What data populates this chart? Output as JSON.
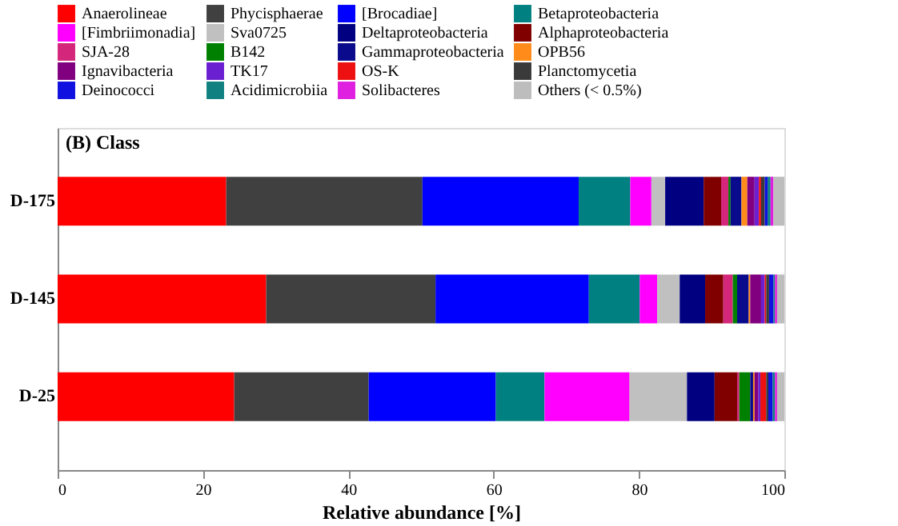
{
  "chart_data": {
    "type": "bar",
    "orientation": "horizontal",
    "stacked": true,
    "title": "(B) Class",
    "xlabel": "Relative abundance [%]",
    "categories": [
      "D-175",
      "D-145",
      "D-25"
    ],
    "xlim": [
      0,
      100
    ],
    "xticks": [
      0,
      20,
      40,
      60,
      80,
      100
    ],
    "grid": false,
    "legend": "top",
    "series": [
      {
        "name": "Anaerolineae",
        "color": "#ff0000",
        "values": [
          23.2,
          28.7,
          24.3
        ]
      },
      {
        "name": "Phycisphaerae",
        "color": "#404040",
        "values": [
          27.0,
          23.3,
          18.5
        ]
      },
      {
        "name": "[Brocadiae]",
        "color": "#0000ff",
        "values": [
          21.5,
          21.1,
          17.5
        ]
      },
      {
        "name": "Betaproteobacteria",
        "color": "#008080",
        "values": [
          7.1,
          7.0,
          6.7
        ]
      },
      {
        "name": "[Fimbriimonadia]",
        "color": "#ff00ff",
        "values": [
          2.9,
          2.4,
          11.7
        ]
      },
      {
        "name": "Sva0725",
        "color": "#c0c0c0",
        "values": [
          1.9,
          3.1,
          7.9
        ]
      },
      {
        "name": "Deltaproteobacteria",
        "color": "#000080",
        "values": [
          5.3,
          3.5,
          3.8
        ]
      },
      {
        "name": "Alphaproteobacteria",
        "color": "#800000",
        "values": [
          2.4,
          2.5,
          3.1
        ]
      },
      {
        "name": "SJA-28",
        "color": "#d4267a",
        "values": [
          1.0,
          1.3,
          0.3
        ]
      },
      {
        "name": "B142",
        "color": "#008000",
        "values": [
          0.3,
          0.6,
          1.5
        ]
      },
      {
        "name": "Gammaproteobacteria",
        "color": "#0a0a8c",
        "values": [
          1.5,
          1.6,
          0.4
        ]
      },
      {
        "name": "OPB56",
        "color": "#ff8c1a",
        "values": [
          0.8,
          0.2,
          0.2
        ]
      },
      {
        "name": "Ignavibacteria",
        "color": "#800080",
        "values": [
          1.0,
          1.5,
          0.5
        ]
      },
      {
        "name": "TK17",
        "color": "#6a1fd1",
        "values": [
          0.6,
          0.5,
          0.3
        ]
      },
      {
        "name": "OS-K",
        "color": "#ee1111",
        "values": [
          0.3,
          0.2,
          0.8
        ]
      },
      {
        "name": "Planctomycetia",
        "color": "#3a3a3a",
        "values": [
          0.5,
          0.4,
          0.3
        ]
      },
      {
        "name": "Deinococci",
        "color": "#1010e0",
        "values": [
          0.4,
          0.6,
          0.6
        ]
      },
      {
        "name": "Acidimicrobiia",
        "color": "#108080",
        "values": [
          0.4,
          0.2,
          0.3
        ]
      },
      {
        "name": "Solibacteres",
        "color": "#e020e0",
        "values": [
          0.4,
          0.3,
          0.3
        ]
      },
      {
        "name": "Others (< 0.5%)",
        "color": "#bdbdbd",
        "values": [
          1.5,
          1.0,
          1.0
        ]
      }
    ]
  }
}
